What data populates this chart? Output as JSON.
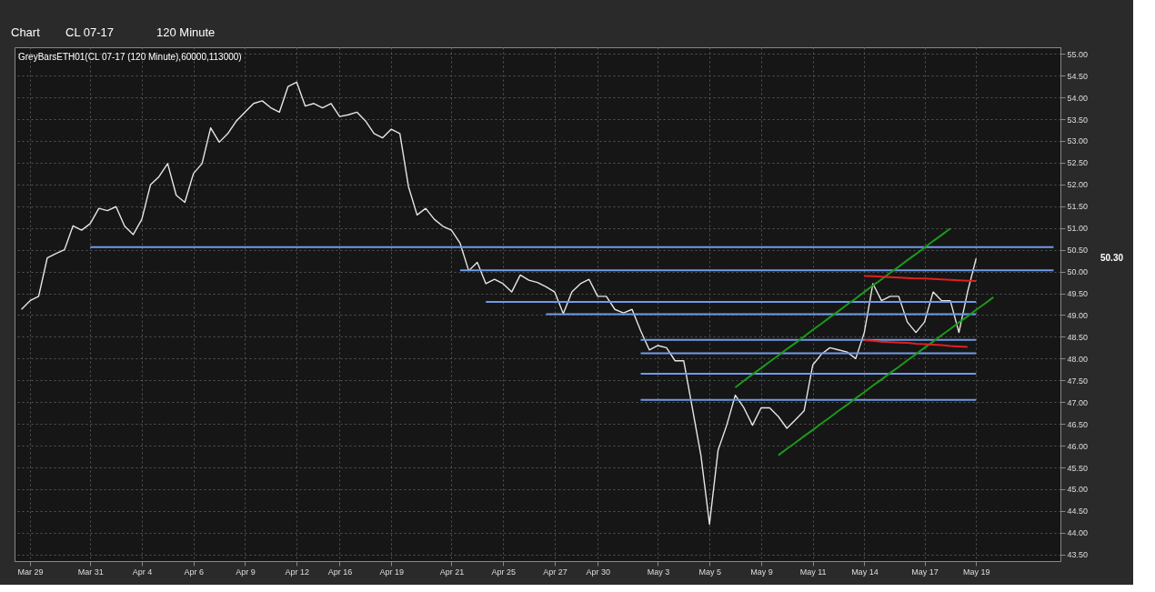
{
  "chart_data": {
    "type": "line",
    "title": "GreyBarsETH01(CL 07-17 (120 Minute),60000,113000)",
    "annotations": [
      "Chart",
      "CL 07-17",
      "120 Minute",
      "50.30"
    ],
    "categories": [
      null,
      "Mar 29",
      null,
      null,
      null,
      null,
      null,
      null,
      "Mar 31",
      null,
      null,
      null,
      null,
      null,
      "Apr 4",
      null,
      null,
      null,
      null,
      null,
      "Apr 6",
      null,
      null,
      null,
      null,
      null,
      "Apr 9",
      null,
      null,
      null,
      null,
      null,
      "Apr 12",
      null,
      null,
      null,
      null,
      "Apr 16",
      null,
      null,
      null,
      null,
      null,
      "Apr 19",
      null,
      null,
      null,
      null,
      null,
      null,
      "Apr 21",
      null,
      null,
      null,
      null,
      null,
      "Apr 25",
      null,
      null,
      null,
      null,
      null,
      "Apr 27",
      null,
      null,
      null,
      null,
      "Apr 30",
      null,
      null,
      null,
      null,
      null,
      null,
      "May 3",
      null,
      null,
      null,
      null,
      null,
      "May 5",
      null,
      null,
      null,
      null,
      null,
      "May 9",
      null,
      null,
      null,
      null,
      null,
      "May 11",
      null,
      null,
      null,
      null,
      null,
      "May 14",
      null,
      null,
      null,
      null,
      null,
      null,
      "May 17",
      null,
      null,
      null,
      null,
      null,
      "May 19",
      null,
      null,
      null,
      null,
      null,
      null,
      null,
      null,
      null
    ],
    "ylim": [
      43.35,
      55.15
    ],
    "yticks": [
      {
        "value": 43.5,
        "label": "43.50"
      },
      {
        "value": 44,
        "label": "44.00"
      },
      {
        "value": 44.5,
        "label": "44.50"
      },
      {
        "value": 45,
        "label": "45.00"
      },
      {
        "value": 45.5,
        "label": "45.50"
      },
      {
        "value": 46,
        "label": "46.00"
      },
      {
        "value": 46.5,
        "label": "46.50"
      },
      {
        "value": 47,
        "label": "47.00"
      },
      {
        "value": 47.5,
        "label": "47.50"
      },
      {
        "value": 48,
        "label": "48.00"
      },
      {
        "value": 48.5,
        "label": "48.50"
      },
      {
        "value": 49,
        "label": "49.00"
      },
      {
        "value": 49.5,
        "label": "49.50"
      },
      {
        "value": 50,
        "label": "50.00"
      },
      {
        "value": 50.5,
        "label": "50.50"
      },
      {
        "value": 51,
        "label": "51.00"
      },
      {
        "value": 51.5,
        "label": "51.50"
      },
      {
        "value": 52,
        "label": "52.00"
      },
      {
        "value": 52.5,
        "label": "52.50"
      },
      {
        "value": 53,
        "label": "53.00"
      },
      {
        "value": 53.5,
        "label": "53.50"
      },
      {
        "value": 54,
        "label": "54.00"
      },
      {
        "value": 54.5,
        "label": "54.50"
      },
      {
        "value": 55,
        "label": "55.00"
      }
    ],
    "grid": true,
    "series": [
      {
        "color": "#e6e6e6",
        "values": [
          49.13,
          49.33,
          49.43,
          50.31,
          50.41,
          50.5,
          51.05,
          50.95,
          51.1,
          51.45,
          51.4,
          51.49,
          51.04,
          50.85,
          51.2,
          51.99,
          52.18,
          52.48,
          51.75,
          51.59,
          52.25,
          52.48,
          53.3,
          52.97,
          53.17,
          53.46,
          53.66,
          53.86,
          53.92,
          53.76,
          53.66,
          54.25,
          54.35,
          53.8,
          53.86,
          53.76,
          53.86,
          53.56,
          53.6,
          53.66,
          53.46,
          53.17,
          53.07,
          53.27,
          53.17,
          51.95,
          51.3,
          51.45,
          51.2,
          51.04,
          50.95,
          50.65,
          50.02,
          50.21,
          49.72,
          49.82,
          49.72,
          49.53,
          49.92,
          49.8,
          49.75,
          49.65,
          49.53,
          49.03,
          49.53,
          49.72,
          49.82,
          49.43,
          49.43,
          49.13,
          49.05,
          49.13,
          48.64,
          48.2,
          48.3,
          48.25,
          47.95,
          47.95,
          46.87,
          45.78,
          44.2,
          45.9,
          46.47,
          47.16,
          46.87,
          46.47,
          46.87,
          46.87,
          46.67,
          46.4,
          46.6,
          46.8,
          47.85,
          48.1,
          48.25,
          48.2,
          48.15,
          48.0,
          48.6,
          49.72,
          49.33,
          49.43,
          49.43,
          48.84,
          48.6,
          48.84,
          49.53,
          49.33,
          49.33,
          48.6,
          49.53,
          50.3,
          null,
          null,
          null,
          null,
          null,
          null,
          null,
          null,
          null
        ]
      },
      {
        "color": "#6f9be8",
        "values": [
          null,
          null,
          null,
          null,
          null,
          null,
          null,
          null,
          50.56,
          50.56,
          50.56,
          50.56,
          50.56,
          50.56,
          50.56,
          50.56,
          50.56,
          50.56,
          50.56,
          50.56,
          50.56,
          50.56,
          50.56,
          50.56,
          50.56,
          50.56,
          50.56,
          50.56,
          50.56,
          50.56,
          50.56,
          50.56,
          50.56,
          50.56,
          50.56,
          50.56,
          50.56,
          50.56,
          50.56,
          50.56,
          50.56,
          50.56,
          50.56,
          50.56,
          50.56,
          50.56,
          50.56,
          50.56,
          50.56,
          50.56,
          50.56,
          50.56,
          50.56,
          50.56,
          50.56,
          50.56,
          50.56,
          50.56,
          50.56,
          50.56,
          50.56,
          50.56,
          50.56,
          50.56,
          50.56,
          50.56,
          50.56,
          50.56,
          50.56,
          50.56,
          50.56,
          50.56,
          50.56,
          50.56,
          50.56,
          50.56,
          50.56,
          50.56,
          50.56,
          50.56,
          50.56,
          50.56,
          50.56,
          50.56,
          50.56,
          50.56,
          50.56,
          50.56,
          50.56,
          50.56,
          50.56,
          50.56,
          50.56,
          50.56,
          50.56,
          50.56,
          50.56,
          50.56,
          50.56,
          50.56,
          50.56,
          50.56,
          50.56,
          50.56,
          50.56,
          50.56,
          50.56,
          50.56,
          50.56,
          50.56,
          50.56,
          50.56,
          50.56,
          50.56,
          50.56,
          50.56,
          50.56,
          50.56,
          50.56,
          50.56,
          50.56
        ]
      },
      {
        "color": "#6f9be8",
        "values": [
          null,
          null,
          null,
          null,
          null,
          null,
          null,
          null,
          null,
          null,
          null,
          null,
          null,
          null,
          null,
          null,
          null,
          null,
          null,
          null,
          null,
          null,
          null,
          null,
          null,
          null,
          null,
          null,
          null,
          null,
          null,
          null,
          null,
          null,
          null,
          null,
          null,
          null,
          null,
          null,
          null,
          null,
          null,
          null,
          null,
          null,
          null,
          null,
          null,
          null,
          null,
          50.03,
          50.03,
          50.03,
          50.03,
          50.03,
          50.03,
          50.03,
          50.03,
          50.03,
          50.03,
          50.03,
          50.03,
          50.03,
          50.03,
          50.03,
          50.03,
          50.03,
          50.03,
          50.03,
          50.03,
          50.03,
          50.03,
          50.03,
          50.03,
          50.03,
          50.03,
          50.03,
          50.03,
          50.03,
          50.03,
          50.03,
          50.03,
          50.03,
          50.03,
          50.03,
          50.03,
          50.03,
          50.03,
          50.03,
          50.03,
          50.03,
          50.03,
          50.03,
          50.03,
          50.03,
          50.03,
          50.03,
          50.03,
          50.03,
          50.03,
          50.03,
          50.03,
          50.03,
          50.03,
          50.03,
          50.03,
          50.03,
          50.03,
          50.03,
          50.03,
          50.03,
          50.03,
          50.03,
          50.03,
          50.03,
          50.03,
          50.03,
          50.03,
          50.03,
          50.03
        ]
      },
      {
        "color": "#6f9be8",
        "values": [
          null,
          null,
          null,
          null,
          null,
          null,
          null,
          null,
          null,
          null,
          null,
          null,
          null,
          null,
          null,
          null,
          null,
          null,
          null,
          null,
          null,
          null,
          null,
          null,
          null,
          null,
          null,
          null,
          null,
          null,
          null,
          null,
          null,
          null,
          null,
          null,
          null,
          null,
          null,
          null,
          null,
          null,
          null,
          null,
          null,
          null,
          null,
          null,
          null,
          null,
          null,
          null,
          null,
          null,
          49.3,
          49.3,
          49.3,
          49.3,
          49.3,
          49.3,
          49.3,
          49.3,
          49.3,
          49.3,
          49.3,
          49.3,
          49.3,
          49.3,
          49.3,
          49.3,
          49.3,
          49.3,
          49.3,
          49.3,
          49.3,
          49.3,
          49.3,
          49.3,
          49.3,
          49.3,
          49.3,
          49.3,
          49.3,
          49.3,
          49.3,
          49.3,
          49.3,
          49.3,
          49.3,
          49.3,
          49.3,
          49.3,
          49.3,
          49.3,
          49.3,
          49.3,
          49.3,
          49.3,
          49.3,
          49.3,
          49.3,
          49.3,
          49.3,
          49.3,
          49.3,
          49.3,
          49.3,
          49.3,
          49.3,
          49.3,
          49.3,
          49.3,
          null,
          null,
          null,
          null,
          null,
          null,
          null,
          null,
          null
        ]
      },
      {
        "color": "#6f9be8",
        "values": [
          null,
          null,
          null,
          null,
          null,
          null,
          null,
          null,
          null,
          null,
          null,
          null,
          null,
          null,
          null,
          null,
          null,
          null,
          null,
          null,
          null,
          null,
          null,
          null,
          null,
          null,
          null,
          null,
          null,
          null,
          null,
          null,
          null,
          null,
          null,
          null,
          null,
          null,
          null,
          null,
          null,
          null,
          null,
          null,
          null,
          null,
          null,
          null,
          null,
          null,
          null,
          null,
          null,
          null,
          null,
          null,
          null,
          null,
          null,
          null,
          null,
          49.02,
          49.02,
          49.02,
          49.02,
          49.02,
          49.02,
          49.02,
          49.02,
          49.02,
          49.02,
          49.02,
          49.02,
          49.02,
          49.02,
          49.02,
          49.02,
          49.02,
          49.02,
          49.02,
          49.02,
          49.02,
          49.02,
          49.02,
          49.02,
          49.02,
          49.02,
          49.02,
          49.02,
          49.02,
          49.02,
          49.02,
          49.02,
          49.02,
          49.02,
          49.02,
          49.02,
          49.02,
          49.02,
          49.02,
          49.02,
          49.02,
          49.02,
          49.02,
          49.02,
          49.02,
          49.02,
          49.02,
          49.02,
          49.02,
          49.02,
          49.02,
          null,
          null,
          null,
          null,
          null,
          null,
          null,
          null,
          null
        ]
      },
      {
        "color": "#6f9be8",
        "values": [
          null,
          null,
          null,
          null,
          null,
          null,
          null,
          null,
          null,
          null,
          null,
          null,
          null,
          null,
          null,
          null,
          null,
          null,
          null,
          null,
          null,
          null,
          null,
          null,
          null,
          null,
          null,
          null,
          null,
          null,
          null,
          null,
          null,
          null,
          null,
          null,
          null,
          null,
          null,
          null,
          null,
          null,
          null,
          null,
          null,
          null,
          null,
          null,
          null,
          null,
          null,
          null,
          null,
          null,
          null,
          null,
          null,
          null,
          null,
          null,
          null,
          null,
          null,
          null,
          null,
          null,
          null,
          null,
          null,
          null,
          null,
          null,
          48.43,
          48.43,
          48.43,
          48.43,
          48.43,
          48.43,
          48.43,
          48.43,
          48.43,
          48.43,
          48.43,
          48.43,
          48.43,
          48.43,
          48.43,
          48.43,
          48.43,
          48.43,
          48.43,
          48.43,
          48.43,
          48.43,
          48.43,
          48.43,
          48.43,
          48.43,
          48.43,
          48.43,
          48.43,
          48.43,
          48.43,
          48.43,
          48.43,
          48.43,
          48.43,
          48.43,
          48.43,
          48.43,
          48.43,
          48.43,
          null,
          null,
          null,
          null,
          null,
          null,
          null,
          null,
          null
        ]
      },
      {
        "color": "#6f9be8",
        "values": [
          null,
          null,
          null,
          null,
          null,
          null,
          null,
          null,
          null,
          null,
          null,
          null,
          null,
          null,
          null,
          null,
          null,
          null,
          null,
          null,
          null,
          null,
          null,
          null,
          null,
          null,
          null,
          null,
          null,
          null,
          null,
          null,
          null,
          null,
          null,
          null,
          null,
          null,
          null,
          null,
          null,
          null,
          null,
          null,
          null,
          null,
          null,
          null,
          null,
          null,
          null,
          null,
          null,
          null,
          null,
          null,
          null,
          null,
          null,
          null,
          null,
          null,
          null,
          null,
          null,
          null,
          null,
          null,
          null,
          null,
          null,
          null,
          48.12,
          48.12,
          48.12,
          48.12,
          48.12,
          48.12,
          48.12,
          48.12,
          48.12,
          48.12,
          48.12,
          48.12,
          48.12,
          48.12,
          48.12,
          48.12,
          48.12,
          48.12,
          48.12,
          48.12,
          48.12,
          48.12,
          48.12,
          48.12,
          48.12,
          48.12,
          48.12,
          48.12,
          48.12,
          48.12,
          48.12,
          48.12,
          48.12,
          48.12,
          48.12,
          48.12,
          48.12,
          48.12,
          48.12,
          48.12,
          null,
          null,
          null,
          null,
          null,
          null,
          null,
          null,
          null
        ]
      },
      {
        "color": "#6f9be8",
        "values": [
          null,
          null,
          null,
          null,
          null,
          null,
          null,
          null,
          null,
          null,
          null,
          null,
          null,
          null,
          null,
          null,
          null,
          null,
          null,
          null,
          null,
          null,
          null,
          null,
          null,
          null,
          null,
          null,
          null,
          null,
          null,
          null,
          null,
          null,
          null,
          null,
          null,
          null,
          null,
          null,
          null,
          null,
          null,
          null,
          null,
          null,
          null,
          null,
          null,
          null,
          null,
          null,
          null,
          null,
          null,
          null,
          null,
          null,
          null,
          null,
          null,
          null,
          null,
          null,
          null,
          null,
          null,
          null,
          null,
          null,
          null,
          null,
          47.65,
          47.65,
          47.65,
          47.65,
          47.65,
          47.65,
          47.65,
          47.65,
          47.65,
          47.65,
          47.65,
          47.65,
          47.65,
          47.65,
          47.65,
          47.65,
          47.65,
          47.65,
          47.65,
          47.65,
          47.65,
          47.65,
          47.65,
          47.65,
          47.65,
          47.65,
          47.65,
          47.65,
          47.65,
          47.65,
          47.65,
          47.65,
          47.65,
          47.65,
          47.65,
          47.65,
          47.65,
          47.65,
          47.65,
          47.65,
          null,
          null,
          null,
          null,
          null,
          null,
          null,
          null,
          null
        ]
      },
      {
        "color": "#6f9be8",
        "values": [
          null,
          null,
          null,
          null,
          null,
          null,
          null,
          null,
          null,
          null,
          null,
          null,
          null,
          null,
          null,
          null,
          null,
          null,
          null,
          null,
          null,
          null,
          null,
          null,
          null,
          null,
          null,
          null,
          null,
          null,
          null,
          null,
          null,
          null,
          null,
          null,
          null,
          null,
          null,
          null,
          null,
          null,
          null,
          null,
          null,
          null,
          null,
          null,
          null,
          null,
          null,
          null,
          null,
          null,
          null,
          null,
          null,
          null,
          null,
          null,
          null,
          null,
          null,
          null,
          null,
          null,
          null,
          null,
          null,
          null,
          null,
          null,
          47.05,
          47.05,
          47.05,
          47.05,
          47.05,
          47.05,
          47.05,
          47.05,
          47.05,
          47.05,
          47.05,
          47.05,
          47.05,
          47.05,
          47.05,
          47.05,
          47.05,
          47.05,
          47.05,
          47.05,
          47.05,
          47.05,
          47.05,
          47.05,
          47.05,
          47.05,
          47.05,
          47.05,
          47.05,
          47.05,
          47.05,
          47.05,
          47.05,
          47.05,
          47.05,
          47.05,
          47.05,
          47.05,
          47.05,
          47.05,
          null,
          null,
          null,
          null,
          null,
          null,
          null,
          null,
          null
        ]
      },
      {
        "color": "#1a9a1a",
        "values": [
          null,
          null,
          null,
          null,
          null,
          null,
          null,
          null,
          null,
          null,
          null,
          null,
          null,
          null,
          null,
          null,
          null,
          null,
          null,
          null,
          null,
          null,
          null,
          null,
          null,
          null,
          null,
          null,
          null,
          null,
          null,
          null,
          null,
          null,
          null,
          null,
          null,
          null,
          null,
          null,
          null,
          null,
          null,
          null,
          null,
          null,
          null,
          null,
          null,
          null,
          null,
          null,
          null,
          null,
          null,
          null,
          null,
          null,
          null,
          null,
          null,
          null,
          null,
          null,
          null,
          null,
          null,
          null,
          null,
          null,
          null,
          null,
          null,
          null,
          null,
          null,
          null,
          null,
          null,
          null,
          null,
          null,
          null,
          47.34,
          47.49,
          47.64,
          47.78,
          47.93,
          48.07,
          48.22,
          48.36,
          48.51,
          48.66,
          48.8,
          48.95,
          49.09,
          49.24,
          49.38,
          49.53,
          49.68,
          49.82,
          49.97,
          50.11,
          50.26,
          50.4,
          50.55,
          50.7,
          50.84,
          50.99,
          null,
          null,
          null,
          null,
          null,
          null,
          null,
          null,
          null,
          null,
          null,
          null
        ]
      },
      {
        "color": "#1a9a1a",
        "values": [
          null,
          null,
          null,
          null,
          null,
          null,
          null,
          null,
          null,
          null,
          null,
          null,
          null,
          null,
          null,
          null,
          null,
          null,
          null,
          null,
          null,
          null,
          null,
          null,
          null,
          null,
          null,
          null,
          null,
          null,
          null,
          null,
          null,
          null,
          null,
          null,
          null,
          null,
          null,
          null,
          null,
          null,
          null,
          null,
          null,
          null,
          null,
          null,
          null,
          null,
          null,
          null,
          null,
          null,
          null,
          null,
          null,
          null,
          null,
          null,
          null,
          null,
          null,
          null,
          null,
          null,
          null,
          null,
          null,
          null,
          null,
          null,
          null,
          null,
          null,
          null,
          null,
          null,
          null,
          null,
          null,
          null,
          null,
          null,
          null,
          null,
          null,
          null,
          45.78,
          45.93,
          46.07,
          46.22,
          46.36,
          46.51,
          46.65,
          46.8,
          46.94,
          47.09,
          47.23,
          47.38,
          47.52,
          47.67,
          47.81,
          47.96,
          48.1,
          48.25,
          48.39,
          48.54,
          48.68,
          48.83,
          48.97,
          49.12,
          49.26,
          49.41,
          null,
          null,
          null,
          null,
          null,
          null,
          null
        ]
      },
      {
        "color": "#e02020",
        "values": [
          null,
          null,
          null,
          null,
          null,
          null,
          null,
          null,
          null,
          null,
          null,
          null,
          null,
          null,
          null,
          null,
          null,
          null,
          null,
          null,
          null,
          null,
          null,
          null,
          null,
          null,
          null,
          null,
          null,
          null,
          null,
          null,
          null,
          null,
          null,
          null,
          null,
          null,
          null,
          null,
          null,
          null,
          null,
          null,
          null,
          null,
          null,
          null,
          null,
          null,
          null,
          null,
          null,
          null,
          null,
          null,
          null,
          null,
          null,
          null,
          null,
          null,
          null,
          null,
          null,
          null,
          null,
          null,
          null,
          null,
          null,
          null,
          null,
          null,
          null,
          null,
          null,
          null,
          null,
          null,
          null,
          null,
          null,
          null,
          null,
          null,
          null,
          null,
          null,
          null,
          null,
          null,
          null,
          null,
          null,
          null,
          null,
          null,
          49.9,
          49.89,
          49.88,
          49.87,
          49.86,
          49.85,
          49.84,
          49.84,
          49.83,
          49.82,
          49.81,
          49.8,
          49.79,
          49.78,
          null,
          null,
          null,
          null,
          null,
          null,
          null,
          null,
          null
        ]
      },
      {
        "color": "#e02020",
        "values": [
          null,
          null,
          null,
          null,
          null,
          null,
          null,
          null,
          null,
          null,
          null,
          null,
          null,
          null,
          null,
          null,
          null,
          null,
          null,
          null,
          null,
          null,
          null,
          null,
          null,
          null,
          null,
          null,
          null,
          null,
          null,
          null,
          null,
          null,
          null,
          null,
          null,
          null,
          null,
          null,
          null,
          null,
          null,
          null,
          null,
          null,
          null,
          null,
          null,
          null,
          null,
          null,
          null,
          null,
          null,
          null,
          null,
          null,
          null,
          null,
          null,
          null,
          null,
          null,
          null,
          null,
          null,
          null,
          null,
          null,
          null,
          null,
          null,
          null,
          null,
          null,
          null,
          null,
          null,
          null,
          null,
          null,
          null,
          null,
          null,
          null,
          null,
          null,
          null,
          null,
          null,
          null,
          null,
          null,
          null,
          null,
          null,
          null,
          48.42,
          48.41,
          48.39,
          48.38,
          48.37,
          48.36,
          48.34,
          48.33,
          48.32,
          48.31,
          48.29,
          48.28,
          48.27,
          null,
          null,
          null,
          null,
          null,
          null,
          null,
          null,
          null,
          null
        ]
      }
    ]
  }
}
